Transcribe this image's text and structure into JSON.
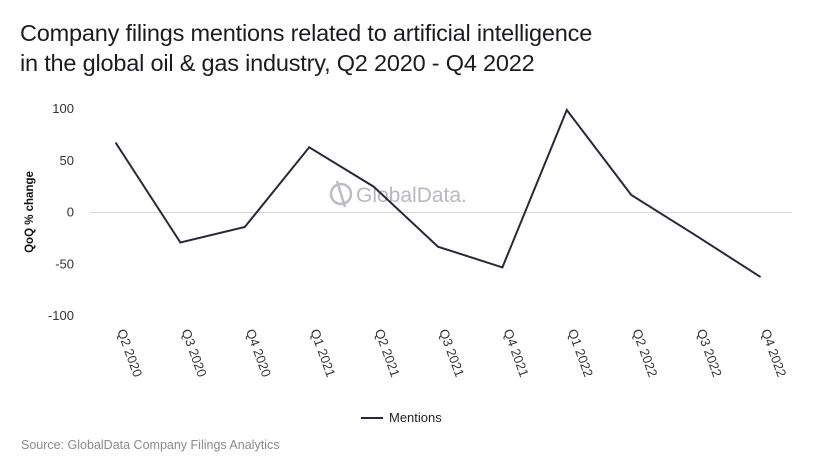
{
  "chart_data": {
    "type": "line",
    "title": "Company filings mentions related to artificial intelligence in the global oil & gas industry, Q2 2020 - Q4 2022",
    "title_lines": [
      "Company filings mentions related to artificial intelligence",
      "in the global oil & gas industry, Q2 2020 - Q4 2022"
    ],
    "xlabel": "",
    "ylabel": "QoQ % change",
    "categories": [
      "Q2 2020",
      "Q3 2020",
      "Q4 2020",
      "Q1 2021",
      "Q2 2021",
      "Q3 2021",
      "Q4 2021",
      "Q1 2022",
      "Q2 2022",
      "Q3 2022",
      "Q4 2022"
    ],
    "series": [
      {
        "name": "Mentions",
        "color": "#2a2838",
        "values": [
          67,
          -29,
          -14,
          63,
          25,
          -33,
          -53,
          99,
          17,
          -22,
          -62
        ]
      }
    ],
    "ylim": [
      -100,
      100
    ],
    "yticks": [
      100,
      50,
      0,
      -50,
      -100
    ],
    "grid": "zero-line only",
    "legend": "bottom-center",
    "watermark": "GlobalData.",
    "source": "Source: GlobalData Company Filings Analytics"
  }
}
